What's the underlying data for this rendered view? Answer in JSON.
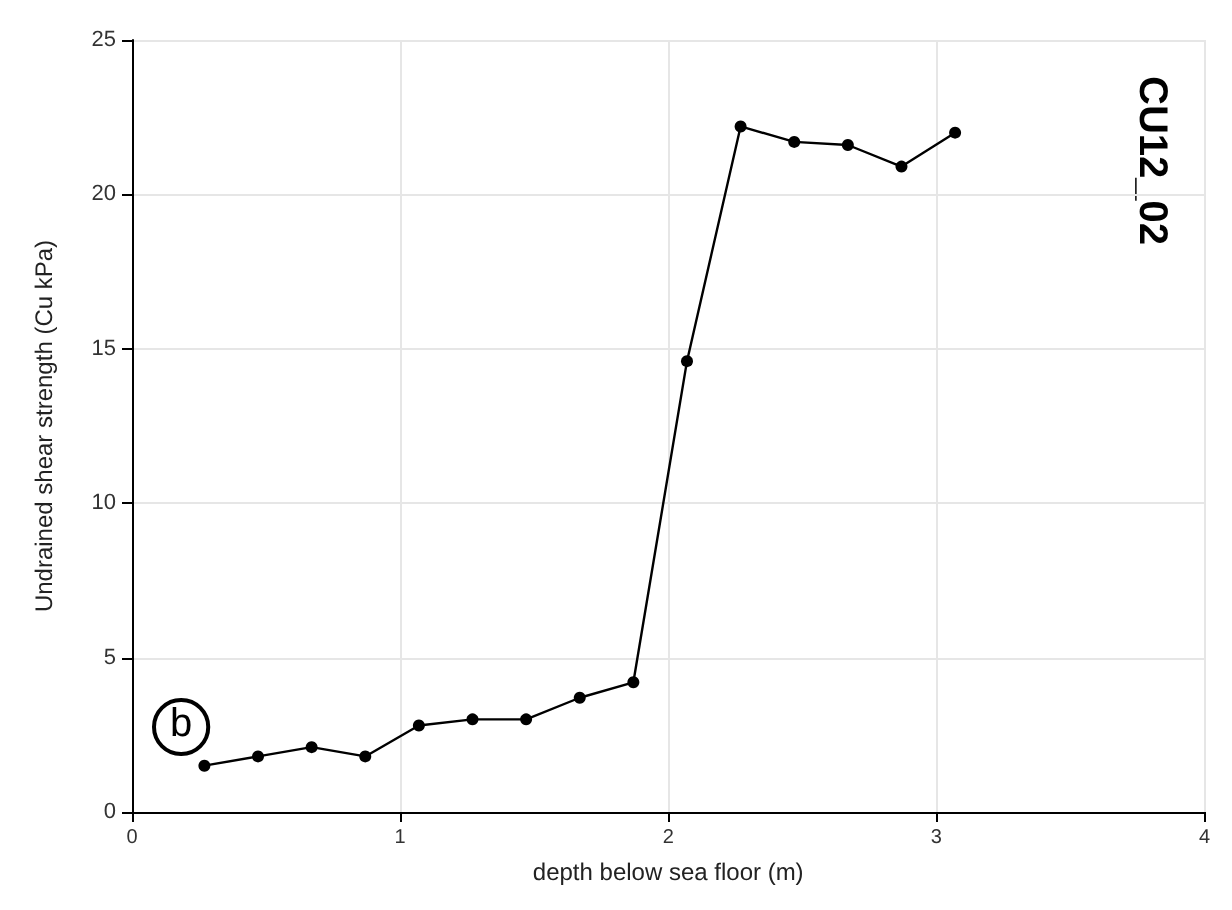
{
  "chart_data": {
    "type": "line",
    "title": "CU12_02",
    "xlabel": "depth below sea floor (m)",
    "ylabel": "Undrained shear strength (Cu kPa)",
    "annotations": [
      "b"
    ],
    "x": [
      0.27,
      0.47,
      0.67,
      0.87,
      1.07,
      1.27,
      1.47,
      1.67,
      1.87,
      2.07,
      2.27,
      2.47,
      2.67,
      2.87,
      3.07
    ],
    "series": [
      {
        "color": "#000000",
        "values": [
          1.5,
          1.8,
          2.1,
          1.8,
          2.8,
          3.0,
          3.0,
          3.7,
          4.2,
          14.6,
          22.2,
          21.7,
          21.6,
          20.9,
          22.0
        ]
      }
    ],
    "xlim": [
      0,
      4
    ],
    "xticks": [
      0,
      1,
      2,
      3,
      4
    ],
    "ylim": [
      0,
      25
    ],
    "yticks": [
      0,
      5,
      10,
      15,
      20,
      25
    ],
    "grid": true,
    "marker": "circle",
    "line_style": "solid"
  }
}
